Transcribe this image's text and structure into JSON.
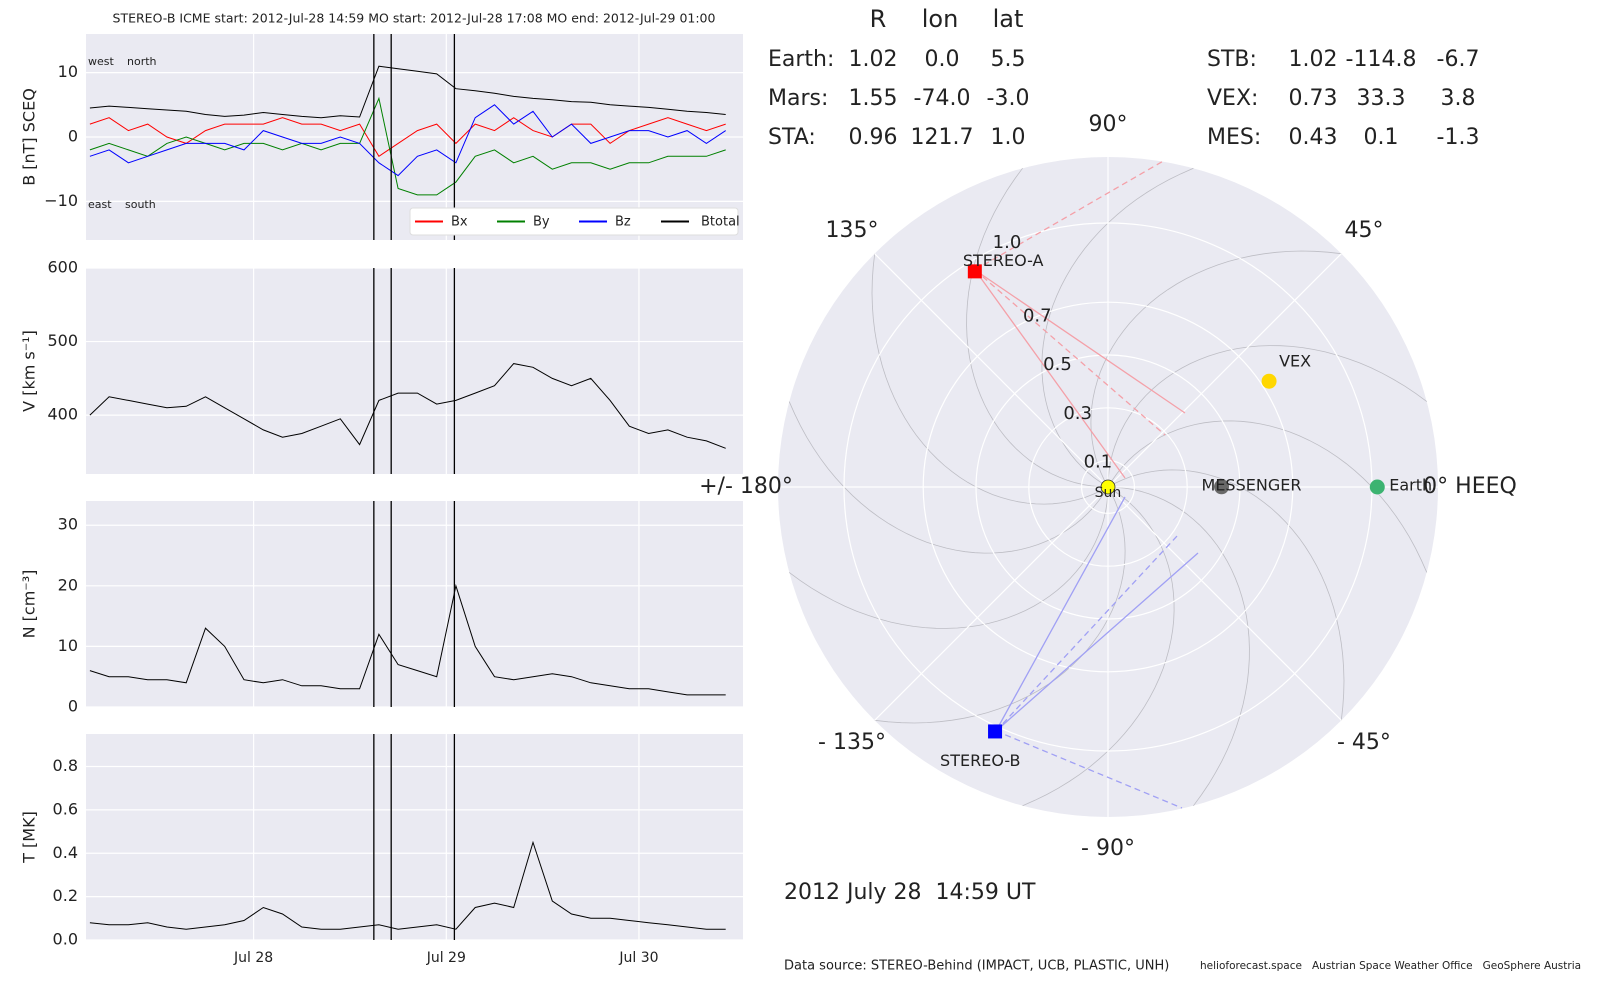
{
  "chart_data": [
    {
      "type": "line",
      "title": "STEREO-B    ICME start: 2012-Jul-28 14:59    MO start: 2012-Jul-28 17:08    MO end: 2012-Jul-29 01:00",
      "ylabel": "B [nT] SCEQ",
      "annotations": [
        "west",
        "north",
        "east",
        "south"
      ],
      "x": [
        27.15,
        27.25,
        27.35,
        27.45,
        27.55,
        27.65,
        27.75,
        27.85,
        27.95,
        28.05,
        28.15,
        28.25,
        28.35,
        28.45,
        28.55,
        28.65,
        28.75,
        28.85,
        28.95,
        29.05,
        29.15,
        29.25,
        29.35,
        29.45,
        29.55,
        29.65,
        29.75,
        29.85,
        29.95,
        30.05,
        30.15,
        30.25,
        30.35,
        30.45
      ],
      "series": [
        {
          "name": "Bx",
          "color": "#ff0000",
          "values": [
            2,
            3,
            1,
            2,
            0,
            -1,
            1,
            2,
            2,
            2,
            3,
            2,
            2,
            1,
            2,
            -3,
            -1,
            1,
            2,
            -1,
            2,
            1,
            3,
            1,
            0,
            2,
            2,
            -1,
            1,
            2,
            3,
            2,
            1,
            2
          ]
        },
        {
          "name": "By",
          "color": "#008000",
          "values": [
            -2,
            -1,
            -2,
            -3,
            -1,
            0,
            -1,
            -2,
            -1,
            -1,
            -2,
            -1,
            -2,
            -1,
            -1,
            6,
            -8,
            -9,
            -9,
            -7,
            -3,
            -2,
            -4,
            -3,
            -5,
            -4,
            -4,
            -5,
            -4,
            -4,
            -3,
            -3,
            -3,
            -2
          ]
        },
        {
          "name": "Bz",
          "color": "#0000ff",
          "values": [
            -3,
            -2,
            -4,
            -3,
            -2,
            -1,
            -1,
            -1,
            -2,
            1,
            0,
            -1,
            -1,
            0,
            -1,
            -4,
            -6,
            -3,
            -2,
            -4,
            3,
            5,
            2,
            4,
            0,
            2,
            -1,
            0,
            1,
            1,
            0,
            1,
            -1,
            1
          ]
        },
        {
          "name": "Btotal",
          "color": "#000000",
          "values": [
            4.5,
            4.8,
            4.6,
            4.4,
            4.2,
            4.0,
            3.5,
            3.2,
            3.4,
            3.8,
            3.5,
            3.2,
            3.0,
            3.3,
            3.1,
            11.0,
            10.6,
            10.2,
            9.8,
            7.5,
            7.2,
            6.8,
            6.3,
            6.0,
            5.8,
            5.5,
            5.4,
            5.0,
            4.8,
            4.6,
            4.3,
            4.0,
            3.8,
            3.5
          ]
        }
      ],
      "xlim": [
        27.13,
        30.54
      ],
      "xticks": [
        28,
        29,
        30
      ],
      "vlines": [
        28.624,
        28.714,
        29.042
      ],
      "ylim": [
        -16,
        16
      ],
      "yticks": [
        {
          "value": -10,
          "label": "−10"
        },
        0,
        10
      ],
      "legend": "lower right",
      "grid": true
    },
    {
      "type": "line",
      "ylabel": "V [km s⁻¹]",
      "x": [
        27.15,
        27.25,
        27.35,
        27.45,
        27.55,
        27.65,
        27.75,
        27.85,
        27.95,
        28.05,
        28.15,
        28.25,
        28.35,
        28.45,
        28.55,
        28.65,
        28.75,
        28.85,
        28.95,
        29.05,
        29.15,
        29.25,
        29.35,
        29.45,
        29.55,
        29.65,
        29.75,
        29.85,
        29.95,
        30.05,
        30.15,
        30.25,
        30.35,
        30.45
      ],
      "series": [
        {
          "color": "#000000",
          "values": [
            400,
            425,
            420,
            415,
            410,
            412,
            425,
            410,
            395,
            380,
            370,
            375,
            385,
            395,
            360,
            420,
            430,
            430,
            415,
            420,
            430,
            440,
            470,
            465,
            450,
            440,
            450,
            420,
            385,
            375,
            380,
            370,
            365,
            355
          ]
        }
      ],
      "xlim": [
        27.13,
        30.54
      ],
      "xticks": [
        28,
        29,
        30
      ],
      "vlines": [
        28.624,
        28.714,
        29.042
      ],
      "ylim": [
        320,
        600
      ],
      "yticks": [
        400,
        500,
        600
      ],
      "grid": true
    },
    {
      "type": "line",
      "ylabel": "N [cm⁻³]",
      "x": [
        27.15,
        27.25,
        27.35,
        27.45,
        27.55,
        27.65,
        27.75,
        27.85,
        27.95,
        28.05,
        28.15,
        28.25,
        28.35,
        28.45,
        28.55,
        28.65,
        28.75,
        28.85,
        28.95,
        29.05,
        29.15,
        29.25,
        29.35,
        29.45,
        29.55,
        29.65,
        29.75,
        29.85,
        29.95,
        30.05,
        30.15,
        30.25,
        30.35,
        30.45
      ],
      "series": [
        {
          "color": "#000000",
          "values": [
            6,
            5,
            5,
            4.5,
            4.5,
            4,
            13,
            10,
            4.5,
            4,
            4.5,
            3.5,
            3.5,
            3,
            3,
            12,
            7,
            6,
            5,
            20,
            10,
            5,
            4.5,
            5,
            5.5,
            5,
            4,
            3.5,
            3,
            3,
            2.5,
            2,
            2,
            2
          ]
        }
      ],
      "xlim": [
        27.13,
        30.54
      ],
      "xticks": [
        28,
        29,
        30
      ],
      "vlines": [
        28.624,
        28.714,
        29.042
      ],
      "ylim": [
        0,
        34
      ],
      "yticks": [
        0,
        10,
        20,
        30
      ],
      "grid": true
    },
    {
      "type": "line",
      "ylabel": "T [MK]",
      "x": [
        27.15,
        27.25,
        27.35,
        27.45,
        27.55,
        27.65,
        27.75,
        27.85,
        27.95,
        28.05,
        28.15,
        28.25,
        28.35,
        28.45,
        28.55,
        28.65,
        28.75,
        28.85,
        28.95,
        29.05,
        29.15,
        29.25,
        29.35,
        29.45,
        29.55,
        29.65,
        29.75,
        29.85,
        29.95,
        30.05,
        30.15,
        30.25,
        30.35,
        30.45
      ],
      "series": [
        {
          "color": "#000000",
          "values": [
            0.08,
            0.07,
            0.07,
            0.08,
            0.06,
            0.05,
            0.06,
            0.07,
            0.09,
            0.15,
            0.12,
            0.06,
            0.05,
            0.05,
            0.06,
            0.07,
            0.05,
            0.06,
            0.07,
            0.05,
            0.15,
            0.17,
            0.15,
            0.45,
            0.18,
            0.12,
            0.1,
            0.1,
            0.09,
            0.08,
            0.07,
            0.06,
            0.05,
            0.05
          ]
        }
      ],
      "xlim": [
        27.13,
        30.54
      ],
      "xticks": [
        {
          "value": 28,
          "label": "Jul 28"
        },
        {
          "value": 29,
          "label": "Jul 29"
        },
        {
          "value": 30,
          "label": "Jul 30"
        }
      ],
      "vlines": [
        28.624,
        28.714,
        29.042
      ],
      "ylim": [
        0,
        0.95
      ],
      "yticks": [
        {
          "value": 0,
          "label": "0.0"
        },
        0.2,
        0.4,
        0.6,
        0.8
      ],
      "grid": true
    },
    {
      "type": "polar",
      "rlim": [
        0,
        1.25
      ],
      "rticks": [
        0.1,
        0.3,
        0.5,
        0.7,
        {
          "value": 1,
          "label": "1.0"
        }
      ],
      "thetaticks": [
        {
          "value": 0,
          "label": "0° HEEQ"
        },
        {
          "value": 45,
          "label": "45°"
        },
        {
          "value": 90,
          "label": "90°"
        },
        {
          "value": 135,
          "label": "135°"
        },
        {
          "value": 180,
          "label": "+/- 180°"
        },
        {
          "value": -135,
          "label": "- 135°"
        },
        {
          "value": -90,
          "label": "- 90°"
        },
        {
          "value": -45,
          "label": "- 45°"
        }
      ],
      "columns": [
        "R",
        "lon",
        "lat"
      ],
      "rows": [
        {
          "name": "Earth:",
          "label": "Earth",
          "color": "#3cb371",
          "marker_color": "#3cb371",
          "marker": "circle",
          "R": 1.02,
          "lon": {
            "value": 0,
            "label": "0.0"
          },
          "lat": 5.5
        },
        {
          "name": "Mars:",
          "color": "#f96a4a",
          "R": 1.55,
          "lon": {
            "value": -74,
            "label": "-74.0"
          },
          "lat": {
            "value": -3,
            "label": "-3.0"
          }
        },
        {
          "name": "STA:",
          "label": "STEREO-A",
          "color": "#ff0000",
          "marker_color": "#ff0000",
          "marker": "square",
          "R": 0.96,
          "lon": 121.7,
          "lat": {
            "value": 1,
            "label": "1.0"
          }
        },
        {
          "name": "STB:",
          "label": "STEREO-B",
          "color": "#0000ff",
          "marker_color": "#0000ff",
          "marker": "square",
          "R": 1.02,
          "lon": -114.8,
          "lat": -6.7
        },
        {
          "name": "VEX:",
          "label": "VEX",
          "color": "#ffa500",
          "marker_color": "#ffd700",
          "marker": "circle",
          "R": 0.73,
          "lon": 33.3,
          "lat": 3.8
        },
        {
          "name": "MES:",
          "label": "MESSENGER",
          "color": "#a9a9a9",
          "marker_color": "#696969",
          "marker": "circle",
          "R": 0.43,
          "lon": 0.1,
          "lat": -1.3
        }
      ],
      "sun": {
        "label": "Sun",
        "color": "#ffff00"
      },
      "time_label": "2012 July 28  14:59 UT",
      "source": "Data source: STEREO-Behind (IMPACT, UCB, PLASTIC, UNH)",
      "credits": "helioforecast.space   Austrian Space Weather Office   GeoSphere Austria"
    }
  ]
}
